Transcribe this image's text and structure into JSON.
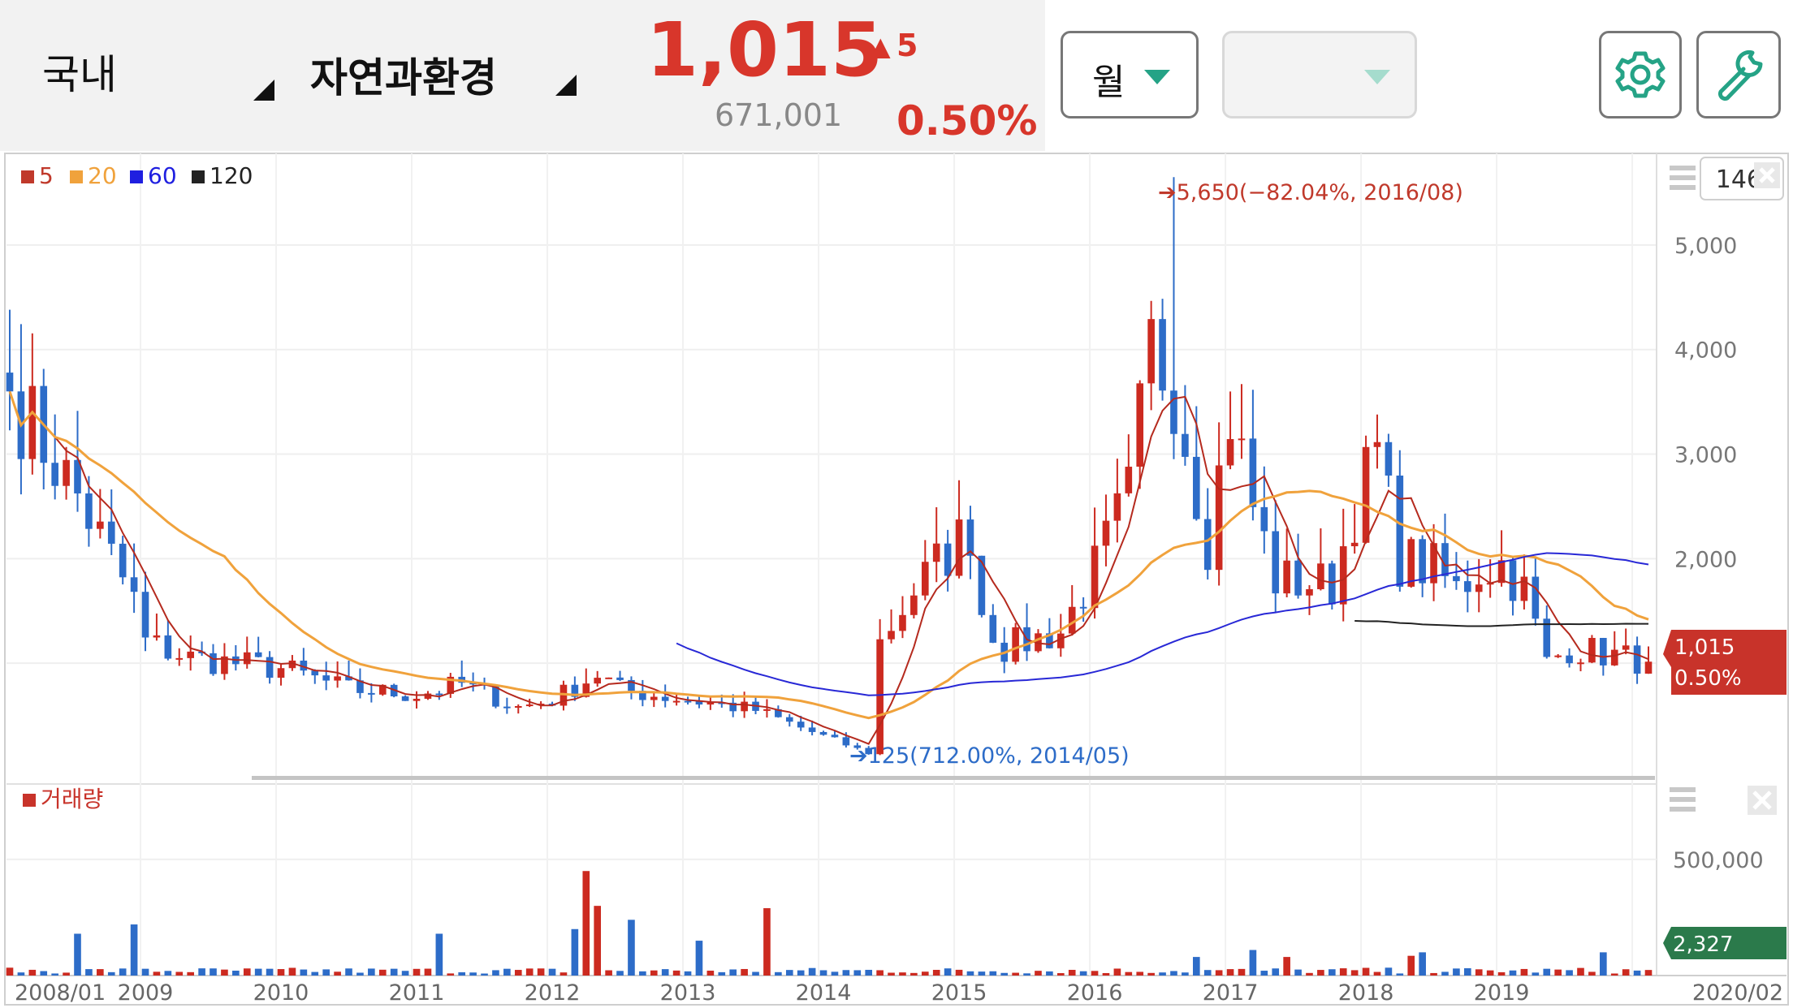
{
  "header": {
    "market_label": "국내",
    "stock_name": "자연과환경",
    "price": "1,015",
    "change_arrow": "▲",
    "change": "5",
    "volume": "671,001",
    "change_pct": "0.50%",
    "period_select": "월",
    "period_select2": "",
    "settings_icon": "gear-icon",
    "tools_icon": "wrench-icon"
  },
  "colors": {
    "up": "#cc2a20",
    "down": "#2d6cc8",
    "ma5": "#b52a1e",
    "ma20": "#f0a23c",
    "ma60": "#2828d6",
    "ma120": "#222222",
    "accent_green": "#25a386",
    "volume_badge": "#2b7a4b"
  },
  "legend": [
    {
      "label": "5",
      "color": "#c0392b"
    },
    {
      "label": "20",
      "color": "#f0a23c"
    },
    {
      "label": "60",
      "color": "#1f1fe0"
    },
    {
      "label": "120",
      "color": "#222222"
    }
  ],
  "controls": {
    "visible_count": "146",
    "close_icon": "close-icon",
    "menu_icon": "hamburger-menu-icon"
  },
  "annotations": {
    "high": "5,650(−82.04%, 2016/08)",
    "low": "125(712.00%, 2014/05)"
  },
  "badges": {
    "price": "1,015",
    "pct": "0.50%",
    "volume": "2,327"
  },
  "volume_label": "거래량",
  "chart_data": {
    "type": "candlestick",
    "interval": "monthly",
    "price_axis": {
      "ticks": [
        "2,000",
        "3,000",
        "4,000",
        "5,000"
      ],
      "range": [
        0,
        5900
      ]
    },
    "volume_axis": {
      "ticks": [
        "500,000"
      ],
      "range": [
        0,
        650000
      ]
    },
    "x_labels": [
      "2008/01",
      "2009",
      "2010",
      "2011",
      "2012",
      "2013",
      "2014",
      "2015",
      "2016",
      "2017",
      "2018",
      "2019",
      "2020/02"
    ],
    "ma_periods": [
      5,
      20,
      60,
      120
    ],
    "knots": [
      [
        0,
        3600
      ],
      [
        6,
        2600
      ],
      [
        11,
        1600
      ],
      [
        12,
        1200
      ],
      [
        16,
        1050
      ],
      [
        24,
        950
      ],
      [
        30,
        750
      ],
      [
        36,
        700
      ],
      [
        40,
        800
      ],
      [
        45,
        580
      ],
      [
        48,
        650
      ],
      [
        52,
        900
      ],
      [
        54,
        750
      ],
      [
        58,
        680
      ],
      [
        62,
        620
      ],
      [
        66,
        550
      ],
      [
        72,
        300
      ],
      [
        76,
        140
      ],
      [
        77,
        1200
      ],
      [
        80,
        1700
      ],
      [
        85,
        2300
      ],
      [
        86,
        1500
      ],
      [
        88,
        1150
      ],
      [
        93,
        1300
      ],
      [
        96,
        1900
      ],
      [
        99,
        2600
      ],
      [
        101,
        4000
      ],
      [
        103,
        3700
      ],
      [
        106,
        2200
      ],
      [
        108,
        3400
      ],
      [
        110,
        2500
      ],
      [
        112,
        1800
      ],
      [
        117,
        1750
      ],
      [
        119,
        2500
      ],
      [
        121,
        3000
      ],
      [
        123,
        2000
      ],
      [
        126,
        1900
      ],
      [
        128,
        1700
      ],
      [
        130,
        1900
      ],
      [
        132,
        1950
      ],
      [
        134,
        1700
      ],
      [
        136,
        1000
      ],
      [
        138,
        1150
      ],
      [
        145,
        1015
      ]
    ],
    "volume_peaks": [
      {
        "i": 6,
        "v": 180000
      },
      {
        "i": 11,
        "v": 220000
      },
      {
        "i": 38,
        "v": 180000
      },
      {
        "i": 50,
        "v": 200000
      },
      {
        "i": 51,
        "v": 450000
      },
      {
        "i": 52,
        "v": 300000
      },
      {
        "i": 55,
        "v": 240000
      },
      {
        "i": 61,
        "v": 150000
      },
      {
        "i": 67,
        "v": 290000
      },
      {
        "i": 105,
        "v": 80000
      },
      {
        "i": 110,
        "v": 110000
      },
      {
        "i": 113,
        "v": 80000
      },
      {
        "i": 124,
        "v": 85000
      },
      {
        "i": 125,
        "v": 100000
      },
      {
        "i": 141,
        "v": 100000
      }
    ],
    "last_price": 1015,
    "high": {
      "value": 5650,
      "date": "2016/08",
      "pct": "−82.04%"
    },
    "low": {
      "value": 125,
      "date": "2014/05",
      "pct": "712.00%"
    }
  }
}
